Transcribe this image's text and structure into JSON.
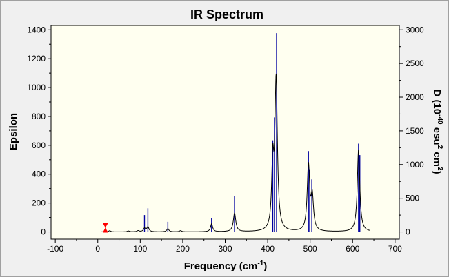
{
  "chart_data": {
    "type": "line",
    "title": "IR Spectrum",
    "xlabel": {
      "text": "Frequency (cm",
      "sup": "-1",
      "tail": ")"
    },
    "ylabel_left": "Epsilon",
    "ylabel_right": {
      "p1": "D (10",
      "s1": "-40",
      "p2": " esu",
      "s2": "2",
      "p3": " cm",
      "s3": "2",
      "p4": ")"
    },
    "xlim": [
      -110,
      710
    ],
    "ylim_left": [
      -50,
      1430
    ],
    "ylim_right": [
      -107,
      3064
    ],
    "x_ticks": [
      -100,
      0,
      100,
      200,
      300,
      400,
      500,
      600,
      700
    ],
    "y_ticks_left": [
      0,
      200,
      400,
      600,
      800,
      1000,
      1200,
      1400
    ],
    "y_ticks_right": [
      0,
      500,
      1000,
      1500,
      2000,
      2500,
      3000
    ],
    "grid": false,
    "plot_background": "#fffff0",
    "colors": {
      "spectrum": "#000000",
      "sticks": "#0000a0",
      "marker": "#ff0000"
    },
    "series": [
      {
        "role": "spectrum",
        "peaks": [
          {
            "x": 28,
            "height": 8,
            "width": 6
          },
          {
            "x": 72,
            "height": 6,
            "width": 6
          },
          {
            "x": 95,
            "height": 8,
            "width": 6
          },
          {
            "x": 110,
            "height": 24,
            "width": 6
          },
          {
            "x": 118,
            "height": 34,
            "width": 6
          },
          {
            "x": 165,
            "height": 22,
            "width": 6
          },
          {
            "x": 195,
            "height": 8,
            "width": 6
          },
          {
            "x": 268,
            "height": 55,
            "width": 6
          },
          {
            "x": 322,
            "height": 128,
            "width": 7
          },
          {
            "x": 412,
            "height": 440,
            "width": 6
          },
          {
            "x": 420,
            "height": 1040,
            "width": 7
          },
          {
            "x": 496,
            "height": 450,
            "width": 7
          },
          {
            "x": 505,
            "height": 230,
            "width": 7
          },
          {
            "x": 614,
            "height": 570,
            "width": 7
          }
        ],
        "x_range": [
          0,
          640
        ]
      },
      {
        "role": "sticks",
        "x": [
          18,
          72,
          110,
          118,
          165,
          190,
          268,
          322,
          412,
          416,
          421,
          496,
          499,
          504,
          614,
          617
        ],
        "values": [
          5,
          5,
          250,
          350,
          150,
          10,
          205,
          530,
          1360,
          1700,
          2950,
          1200,
          930,
          780,
          1310,
          1140
        ]
      }
    ],
    "marker_x": 18
  }
}
